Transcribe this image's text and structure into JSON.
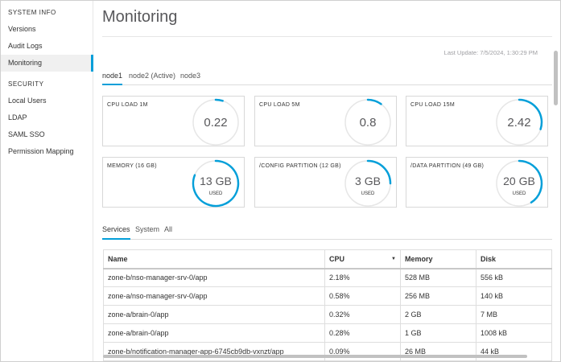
{
  "sidebar": {
    "system_info_heading": "SYSTEM INFO",
    "system_items": [
      {
        "label": "Versions"
      },
      {
        "label": "Audit Logs"
      },
      {
        "label": "Monitoring"
      }
    ],
    "security_heading": "SECURITY",
    "security_items": [
      {
        "label": "Local Users"
      },
      {
        "label": "LDAP"
      },
      {
        "label": "SAML SSO"
      },
      {
        "label": "Permission Mapping"
      }
    ],
    "active_item": "Monitoring"
  },
  "page": {
    "title": "Monitoring",
    "last_update": "Last Update: 7/5/2024, 1:30:29 PM"
  },
  "node_tabs": [
    {
      "label": "node1",
      "active": true
    },
    {
      "label": "node2 (Active)",
      "active": false
    },
    {
      "label": "node3",
      "active": false
    }
  ],
  "cards": [
    {
      "label": "CPU LOAD 1M",
      "value": "0.22",
      "used_label": "",
      "fraction": 0.05
    },
    {
      "label": "CPU LOAD 5M",
      "value": "0.8",
      "used_label": "",
      "fraction": 0.1
    },
    {
      "label": "CPU LOAD 15M",
      "value": "2.42",
      "used_label": "",
      "fraction": 0.3
    },
    {
      "label": "MEMORY (16 GB)",
      "value": "13 GB",
      "used_label": "USED",
      "fraction": 0.81
    },
    {
      "label": "/CONFIG PARTITION (12 GB)",
      "value": "3 GB",
      "used_label": "USED",
      "fraction": 0.25
    },
    {
      "label": "/DATA PARTITION (49 GB)",
      "value": "20 GB",
      "used_label": "USED",
      "fraction": 0.41
    }
  ],
  "service_tabs": [
    {
      "label": "Services",
      "active": true
    },
    {
      "label": "System",
      "active": false
    },
    {
      "label": "All",
      "active": false
    }
  ],
  "table": {
    "columns": [
      "Name",
      "CPU",
      "Memory",
      "Disk"
    ],
    "sorted_column": "CPU",
    "rows": [
      [
        "zone-b/nso-manager-srv-0/app",
        "2.18%",
        "528 MB",
        "556 kB"
      ],
      [
        "zone-a/nso-manager-srv-0/app",
        "0.58%",
        "256 MB",
        "140 kB"
      ],
      [
        "zone-a/brain-0/app",
        "0.32%",
        "2 GB",
        "7 MB"
      ],
      [
        "zone-a/brain-0/app",
        "0.28%",
        "1 GB",
        "1008 kB"
      ],
      [
        "zone-b/notification-manager-app-6745cb9db-vxnzt/app",
        "0.09%",
        "26 MB",
        "44 kB"
      ]
    ]
  },
  "colors": {
    "accent": "#049fd9",
    "gauge_track": "#e6e6e6",
    "active_item_bg": "#f0f0f0"
  }
}
